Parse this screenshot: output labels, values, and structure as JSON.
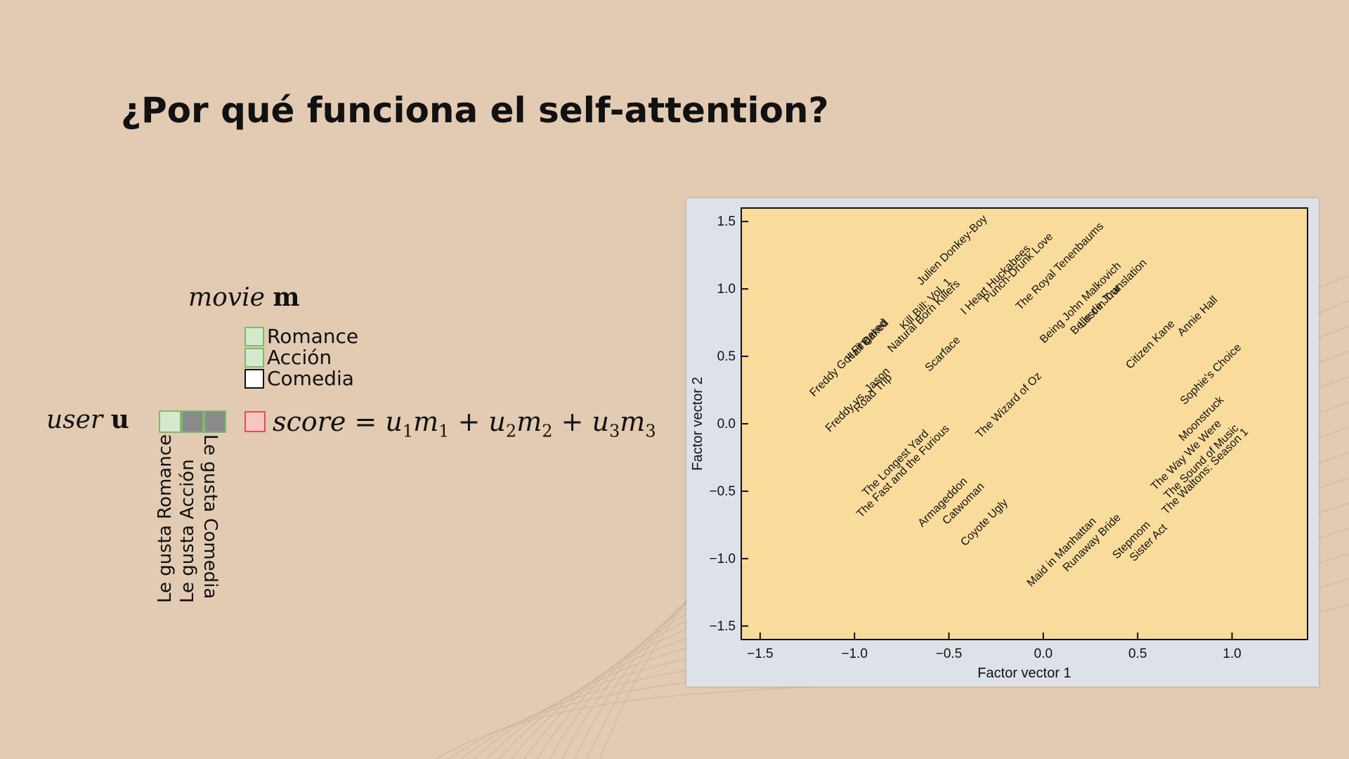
{
  "slide": {
    "title": "¿Por qué funciona el self-attention?"
  },
  "movie": {
    "label_italic": "movie",
    "label_bold": "m",
    "features": [
      {
        "label": "Romance",
        "fill": "green"
      },
      {
        "label": "Acción",
        "fill": "green"
      },
      {
        "label": "Comedia",
        "fill": "white"
      }
    ]
  },
  "user": {
    "label_italic": "user",
    "label_bold": "u",
    "cells": [
      "green",
      "gray",
      "gray"
    ],
    "preferences": [
      "Le gusta Romance",
      "Le gusta Acción",
      "Le gusta Comedia"
    ]
  },
  "score": {
    "word": "score",
    "terms": [
      {
        "a": "u",
        "i": "1",
        "b": "m",
        "j": "1"
      },
      {
        "a": "u",
        "i": "2",
        "b": "m",
        "j": "2"
      },
      {
        "a": "u",
        "i": "3",
        "b": "m",
        "j": "3"
      }
    ]
  },
  "colors": {
    "background": "#e2cbb2",
    "plot_area": "#f9dc9c",
    "panel": "#dde1ea",
    "green_cell": "#d6e9ce",
    "green_border": "#7fb96a",
    "gray_cell": "#8a8a8a",
    "score_cell": "#f7c6c3",
    "score_border": "#d9534f"
  },
  "chart_data": {
    "type": "scatter",
    "title": "",
    "xlabel": "Factor vector 1",
    "ylabel": "Factor vector 2",
    "xlim": [
      -1.6,
      1.4
    ],
    "ylim": [
      -1.6,
      1.6
    ],
    "xticks": [
      "−1.5",
      "−1.0",
      "−0.5",
      "0.0",
      "0.5",
      "1.0"
    ],
    "xtick_values": [
      -1.5,
      -1.0,
      -0.5,
      0.0,
      0.5,
      1.0
    ],
    "yticks": [
      "1.5",
      "1.0",
      "0.5",
      "0.0",
      "−0.5",
      "−1.0",
      "−1.5"
    ],
    "ytick_values": [
      1.5,
      1.0,
      0.5,
      0.0,
      -0.5,
      -1.0,
      -1.5
    ],
    "grid": false,
    "point_labels_rotated_deg": -45,
    "points": [
      {
        "label": "Freddy Got Fingered",
        "x": -1.02,
        "y": 0.47
      },
      {
        "label": "Half Baked",
        "x": -0.92,
        "y": 0.6
      },
      {
        "label": "Freddy vs. Jason",
        "x": -0.97,
        "y": 0.16
      },
      {
        "label": "Road Trip",
        "x": -0.89,
        "y": 0.21
      },
      {
        "label": "Julien Donkey-Boy",
        "x": -0.47,
        "y": 1.27
      },
      {
        "label": "Kill Bill: Vol. 1",
        "x": -0.61,
        "y": 0.87
      },
      {
        "label": "Natural Born Killers",
        "x": -0.62,
        "y": 0.78
      },
      {
        "label": "Scarface",
        "x": -0.52,
        "y": 0.5
      },
      {
        "label": "I Heart Huckabees",
        "x": -0.24,
        "y": 1.05
      },
      {
        "label": "Punch-Drunk Love",
        "x": -0.12,
        "y": 1.14
      },
      {
        "label": "The Royal Tenenbaums",
        "x": 0.1,
        "y": 1.15
      },
      {
        "label": "Being John Malkovich",
        "x": 0.21,
        "y": 0.88
      },
      {
        "label": "Lost in Translation",
        "x": 0.38,
        "y": 0.95
      },
      {
        "label": "Belle de Jour",
        "x": 0.29,
        "y": 0.83
      },
      {
        "label": "Citizen Kane",
        "x": 0.58,
        "y": 0.57
      },
      {
        "label": "Annie Hall",
        "x": 0.83,
        "y": 0.78
      },
      {
        "label": "The Wizard of Oz",
        "x": -0.17,
        "y": 0.12
      },
      {
        "label": "Sophie's Choice",
        "x": 0.9,
        "y": 0.35
      },
      {
        "label": "Moonstruck",
        "x": 0.85,
        "y": 0.02
      },
      {
        "label": "The Way We Were",
        "x": 0.77,
        "y": -0.25
      },
      {
        "label": "The Sound of Music",
        "x": 0.85,
        "y": -0.3
      },
      {
        "label": "The Waltons: Season 1",
        "x": 0.87,
        "y": -0.37
      },
      {
        "label": "The Longest Yard",
        "x": -0.77,
        "y": -0.31
      },
      {
        "label": "The Fast and the Furious",
        "x": -0.73,
        "y": -0.37
      },
      {
        "label": "Armageddon",
        "x": -0.52,
        "y": -0.6
      },
      {
        "label": "Catwoman",
        "x": -0.41,
        "y": -0.61
      },
      {
        "label": "Coyote Ugly",
        "x": -0.3,
        "y": -0.75
      },
      {
        "label": "Maid in Manhattan",
        "x": 0.11,
        "y": -0.97
      },
      {
        "label": "Runaway Bride",
        "x": 0.27,
        "y": -0.9
      },
      {
        "label": "Stepmom",
        "x": 0.48,
        "y": -0.88
      },
      {
        "label": "Sister Act",
        "x": 0.57,
        "y": -0.9
      }
    ]
  }
}
